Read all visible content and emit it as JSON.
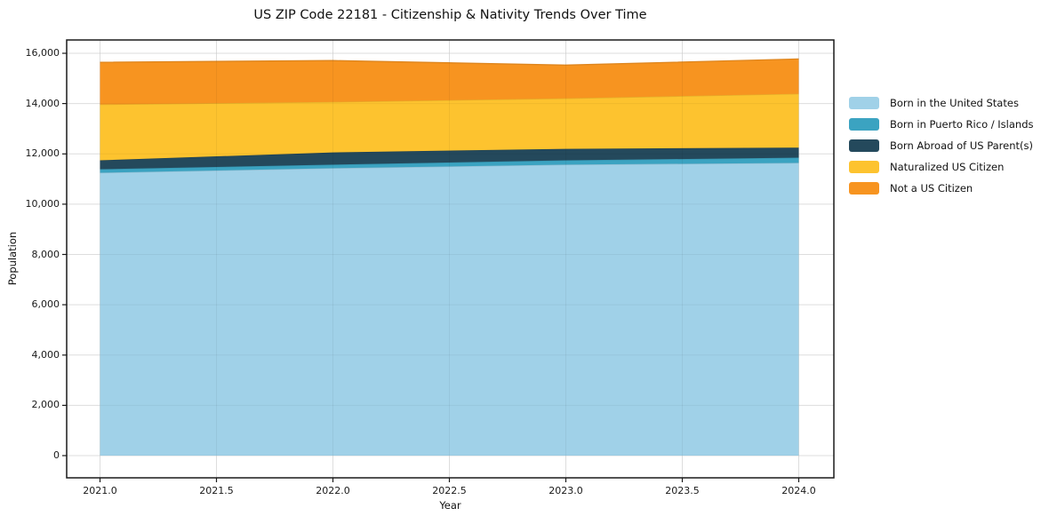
{
  "chart_data": {
    "type": "area",
    "stacked": true,
    "title": "US ZIP Code 22181 - Citizenship & Nativity Trends Over Time",
    "xlabel": "Year",
    "ylabel": "Population",
    "grid": true,
    "legend_position": "right",
    "x": [
      2021,
      2022,
      2023,
      2024
    ],
    "series": [
      {
        "name": "Born in the United States",
        "color": "#a0d1e8",
        "values": [
          11250,
          11430,
          11570,
          11640
        ]
      },
      {
        "name": "Born in Puerto Rico / Islands",
        "color": "#3ba3c1",
        "values": [
          140,
          140,
          175,
          210
        ]
      },
      {
        "name": "Born Abroad of US Parent(s)",
        "color": "#24495c",
        "values": [
          355,
          490,
          455,
          400
        ]
      },
      {
        "name": "Naturalized US Citizen",
        "color": "#fdc32f",
        "values": [
          2220,
          2005,
          2005,
          2140
        ]
      },
      {
        "name": "Not a US Citizen",
        "color": "#f79420",
        "values": [
          1680,
          1645,
          1325,
          1385
        ]
      }
    ],
    "x_ticks": [
      {
        "value": 2021.0,
        "label": "2021.0"
      },
      {
        "value": 2021.5,
        "label": "2021.5"
      },
      {
        "value": 2022.0,
        "label": "2022.0"
      },
      {
        "value": 2022.5,
        "label": "2022.5"
      },
      {
        "value": 2023.0,
        "label": "2023.0"
      },
      {
        "value": 2023.5,
        "label": "2023.5"
      },
      {
        "value": 2024.0,
        "label": "2024.0"
      }
    ],
    "y_ticks": [
      {
        "value": 0,
        "label": "0"
      },
      {
        "value": 2000,
        "label": "2,000"
      },
      {
        "value": 4000,
        "label": "4,000"
      },
      {
        "value": 6000,
        "label": "6,000"
      },
      {
        "value": 8000,
        "label": "8,000"
      },
      {
        "value": 10000,
        "label": "10,000"
      },
      {
        "value": 12000,
        "label": "12,000"
      },
      {
        "value": 14000,
        "label": "14,000"
      },
      {
        "value": 16000,
        "label": "16,000"
      }
    ],
    "axis_range": {
      "x": [
        2021,
        2024
      ],
      "y": [
        0,
        16000
      ]
    },
    "colors": {
      "frame": "#1a1a1a",
      "grid": "#e9e9e9"
    }
  }
}
